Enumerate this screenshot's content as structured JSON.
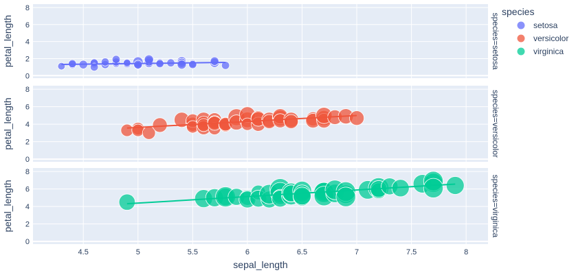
{
  "chart_data": {
    "type": "scatter",
    "xlabel": "sepal_length",
    "ylabel": "petal_length",
    "x_ticks": [
      "4.5",
      "5",
      "5.5",
      "6",
      "6.5",
      "7",
      "7.5",
      "8"
    ],
    "y_ticks": [
      "0",
      "2",
      "4",
      "6",
      "8"
    ],
    "xlim": [
      4.04,
      8.2
    ],
    "ylim": [
      -0.3,
      8.4
    ],
    "legend": {
      "title": "species",
      "placement": "top-right"
    },
    "grid": true,
    "trendline": "ols",
    "panels": [
      {
        "facet_label": "species=setosa",
        "series": "setosa",
        "color": "#636efa",
        "trend": [
          [
            4.3,
            1.31
          ],
          [
            5.8,
            1.55
          ]
        ],
        "points": [
          {
            "x": 4.3,
            "y": 1.1,
            "s": 0.1
          },
          {
            "x": 4.4,
            "y": 1.3,
            "s": 0.2
          },
          {
            "x": 4.4,
            "y": 1.4,
            "s": 0.2
          },
          {
            "x": 4.5,
            "y": 1.3,
            "s": 0.3
          },
          {
            "x": 4.6,
            "y": 1.4,
            "s": 0.3
          },
          {
            "x": 4.6,
            "y": 1.5,
            "s": 0.2
          },
          {
            "x": 4.6,
            "y": 1.0,
            "s": 0.2
          },
          {
            "x": 4.7,
            "y": 1.3,
            "s": 0.2
          },
          {
            "x": 4.7,
            "y": 1.6,
            "s": 0.2
          },
          {
            "x": 4.8,
            "y": 1.4,
            "s": 0.1
          },
          {
            "x": 4.8,
            "y": 1.6,
            "s": 0.2
          },
          {
            "x": 4.8,
            "y": 1.9,
            "s": 0.2
          },
          {
            "x": 4.9,
            "y": 1.4,
            "s": 0.2
          },
          {
            "x": 4.9,
            "y": 1.5,
            "s": 0.1
          },
          {
            "x": 5.0,
            "y": 1.4,
            "s": 0.2
          },
          {
            "x": 5.0,
            "y": 1.6,
            "s": 0.6
          },
          {
            "x": 5.0,
            "y": 1.2,
            "s": 0.2
          },
          {
            "x": 5.0,
            "y": 1.3,
            "s": 0.3
          },
          {
            "x": 5.1,
            "y": 1.4,
            "s": 0.2
          },
          {
            "x": 5.1,
            "y": 1.5,
            "s": 0.4
          },
          {
            "x": 5.1,
            "y": 1.7,
            "s": 0.5
          },
          {
            "x": 5.1,
            "y": 1.9,
            "s": 0.4
          },
          {
            "x": 5.2,
            "y": 1.5,
            "s": 0.2
          },
          {
            "x": 5.2,
            "y": 1.4,
            "s": 0.2
          },
          {
            "x": 5.3,
            "y": 1.5,
            "s": 0.2
          },
          {
            "x": 5.4,
            "y": 1.7,
            "s": 0.4
          },
          {
            "x": 5.4,
            "y": 1.5,
            "s": 0.4
          },
          {
            "x": 5.4,
            "y": 1.3,
            "s": 0.4
          },
          {
            "x": 5.5,
            "y": 1.4,
            "s": 0.2
          },
          {
            "x": 5.5,
            "y": 1.3,
            "s": 0.2
          },
          {
            "x": 5.7,
            "y": 1.5,
            "s": 0.4
          },
          {
            "x": 5.7,
            "y": 1.7,
            "s": 0.3
          },
          {
            "x": 5.8,
            "y": 1.2,
            "s": 0.2
          }
        ]
      },
      {
        "facet_label": "species=versicolor",
        "series": "versicolor",
        "color": "#ef553b",
        "trend": [
          [
            4.9,
            3.56
          ],
          [
            7.0,
            4.99
          ]
        ],
        "points": [
          {
            "x": 4.9,
            "y": 3.3,
            "s": 1.0
          },
          {
            "x": 5.0,
            "y": 3.5,
            "s": 1.0
          },
          {
            "x": 5.0,
            "y": 3.3,
            "s": 1.0
          },
          {
            "x": 5.1,
            "y": 3.0,
            "s": 1.1
          },
          {
            "x": 5.2,
            "y": 3.9,
            "s": 1.4
          },
          {
            "x": 5.4,
            "y": 4.5,
            "s": 1.5
          },
          {
            "x": 5.5,
            "y": 4.0,
            "s": 1.3
          },
          {
            "x": 5.5,
            "y": 4.4,
            "s": 1.2
          },
          {
            "x": 5.5,
            "y": 3.7,
            "s": 1.0
          },
          {
            "x": 5.6,
            "y": 4.5,
            "s": 1.5
          },
          {
            "x": 5.6,
            "y": 4.1,
            "s": 1.3
          },
          {
            "x": 5.6,
            "y": 3.6,
            "s": 1.3
          },
          {
            "x": 5.6,
            "y": 3.9,
            "s": 1.1
          },
          {
            "x": 5.7,
            "y": 4.5,
            "s": 1.3
          },
          {
            "x": 5.7,
            "y": 3.5,
            "s": 1.0
          },
          {
            "x": 5.7,
            "y": 4.2,
            "s": 1.2
          },
          {
            "x": 5.7,
            "y": 4.1,
            "s": 1.3
          },
          {
            "x": 5.8,
            "y": 4.1,
            "s": 1.0
          },
          {
            "x": 5.8,
            "y": 3.9,
            "s": 1.2
          },
          {
            "x": 5.8,
            "y": 4.0,
            "s": 1.2
          },
          {
            "x": 5.9,
            "y": 4.8,
            "s": 1.8
          },
          {
            "x": 5.9,
            "y": 4.2,
            "s": 1.5
          },
          {
            "x": 6.0,
            "y": 4.5,
            "s": 1.6
          },
          {
            "x": 6.0,
            "y": 5.1,
            "s": 1.6
          },
          {
            "x": 6.0,
            "y": 4.0,
            "s": 1.0
          },
          {
            "x": 6.1,
            "y": 4.7,
            "s": 1.4
          },
          {
            "x": 6.1,
            "y": 4.0,
            "s": 1.3
          },
          {
            "x": 6.1,
            "y": 4.6,
            "s": 1.4
          },
          {
            "x": 6.2,
            "y": 4.5,
            "s": 1.5
          },
          {
            "x": 6.2,
            "y": 4.3,
            "s": 1.3
          },
          {
            "x": 6.3,
            "y": 4.7,
            "s": 1.6
          },
          {
            "x": 6.3,
            "y": 4.9,
            "s": 1.5
          },
          {
            "x": 6.3,
            "y": 4.4,
            "s": 1.3
          },
          {
            "x": 6.4,
            "y": 4.5,
            "s": 1.5
          },
          {
            "x": 6.4,
            "y": 4.3,
            "s": 1.3
          },
          {
            "x": 6.6,
            "y": 4.6,
            "s": 1.3
          },
          {
            "x": 6.6,
            "y": 4.4,
            "s": 1.4
          },
          {
            "x": 6.7,
            "y": 4.7,
            "s": 1.5
          },
          {
            "x": 6.7,
            "y": 4.4,
            "s": 1.4
          },
          {
            "x": 6.7,
            "y": 5.0,
            "s": 1.7
          },
          {
            "x": 6.8,
            "y": 4.8,
            "s": 1.4
          },
          {
            "x": 6.9,
            "y": 4.9,
            "s": 1.5
          },
          {
            "x": 7.0,
            "y": 4.7,
            "s": 1.4
          }
        ]
      },
      {
        "facet_label": "species=virginica",
        "series": "virginica",
        "color": "#00cc96",
        "trend": [
          [
            4.9,
            4.31
          ],
          [
            7.9,
            6.56
          ]
        ],
        "points": [
          {
            "x": 4.9,
            "y": 4.5,
            "s": 1.7
          },
          {
            "x": 5.6,
            "y": 4.9,
            "s": 2.0
          },
          {
            "x": 5.7,
            "y": 5.0,
            "s": 2.0
          },
          {
            "x": 5.8,
            "y": 5.1,
            "s": 1.9
          },
          {
            "x": 5.8,
            "y": 5.1,
            "s": 2.4
          },
          {
            "x": 5.9,
            "y": 5.1,
            "s": 1.8
          },
          {
            "x": 6.0,
            "y": 5.0,
            "s": 1.5
          },
          {
            "x": 6.0,
            "y": 4.8,
            "s": 1.8
          },
          {
            "x": 6.1,
            "y": 5.6,
            "s": 1.4
          },
          {
            "x": 6.1,
            "y": 4.9,
            "s": 1.8
          },
          {
            "x": 6.2,
            "y": 4.8,
            "s": 1.8
          },
          {
            "x": 6.2,
            "y": 5.4,
            "s": 2.3
          },
          {
            "x": 6.3,
            "y": 6.0,
            "s": 2.5
          },
          {
            "x": 6.3,
            "y": 5.6,
            "s": 2.4
          },
          {
            "x": 6.3,
            "y": 5.1,
            "s": 1.5
          },
          {
            "x": 6.3,
            "y": 4.9,
            "s": 1.8
          },
          {
            "x": 6.4,
            "y": 5.3,
            "s": 2.3
          },
          {
            "x": 6.4,
            "y": 5.6,
            "s": 2.2
          },
          {
            "x": 6.4,
            "y": 5.5,
            "s": 1.8
          },
          {
            "x": 6.5,
            "y": 5.8,
            "s": 2.2
          },
          {
            "x": 6.5,
            "y": 5.5,
            "s": 1.8
          },
          {
            "x": 6.5,
            "y": 5.1,
            "s": 2.0
          },
          {
            "x": 6.5,
            "y": 5.2,
            "s": 2.0
          },
          {
            "x": 6.7,
            "y": 5.8,
            "s": 1.8
          },
          {
            "x": 6.7,
            "y": 5.7,
            "s": 2.1
          },
          {
            "x": 6.7,
            "y": 5.6,
            "s": 2.4
          },
          {
            "x": 6.7,
            "y": 5.2,
            "s": 2.3
          },
          {
            "x": 6.8,
            "y": 5.5,
            "s": 2.1
          },
          {
            "x": 6.8,
            "y": 5.9,
            "s": 2.3
          },
          {
            "x": 6.9,
            "y": 5.4,
            "s": 2.1
          },
          {
            "x": 6.9,
            "y": 5.7,
            "s": 2.3
          },
          {
            "x": 6.9,
            "y": 5.1,
            "s": 2.3
          },
          {
            "x": 7.1,
            "y": 5.9,
            "s": 2.1
          },
          {
            "x": 7.2,
            "y": 6.1,
            "s": 2.5
          },
          {
            "x": 7.2,
            "y": 5.8,
            "s": 1.6
          },
          {
            "x": 7.2,
            "y": 6.0,
            "s": 1.8
          },
          {
            "x": 7.3,
            "y": 6.3,
            "s": 1.8
          },
          {
            "x": 7.4,
            "y": 6.1,
            "s": 1.9
          },
          {
            "x": 7.6,
            "y": 6.6,
            "s": 2.1
          },
          {
            "x": 7.7,
            "y": 6.7,
            "s": 2.2
          },
          {
            "x": 7.7,
            "y": 6.9,
            "s": 2.3
          },
          {
            "x": 7.7,
            "y": 6.1,
            "s": 2.3
          },
          {
            "x": 7.9,
            "y": 6.4,
            "s": 2.0
          }
        ]
      }
    ]
  }
}
